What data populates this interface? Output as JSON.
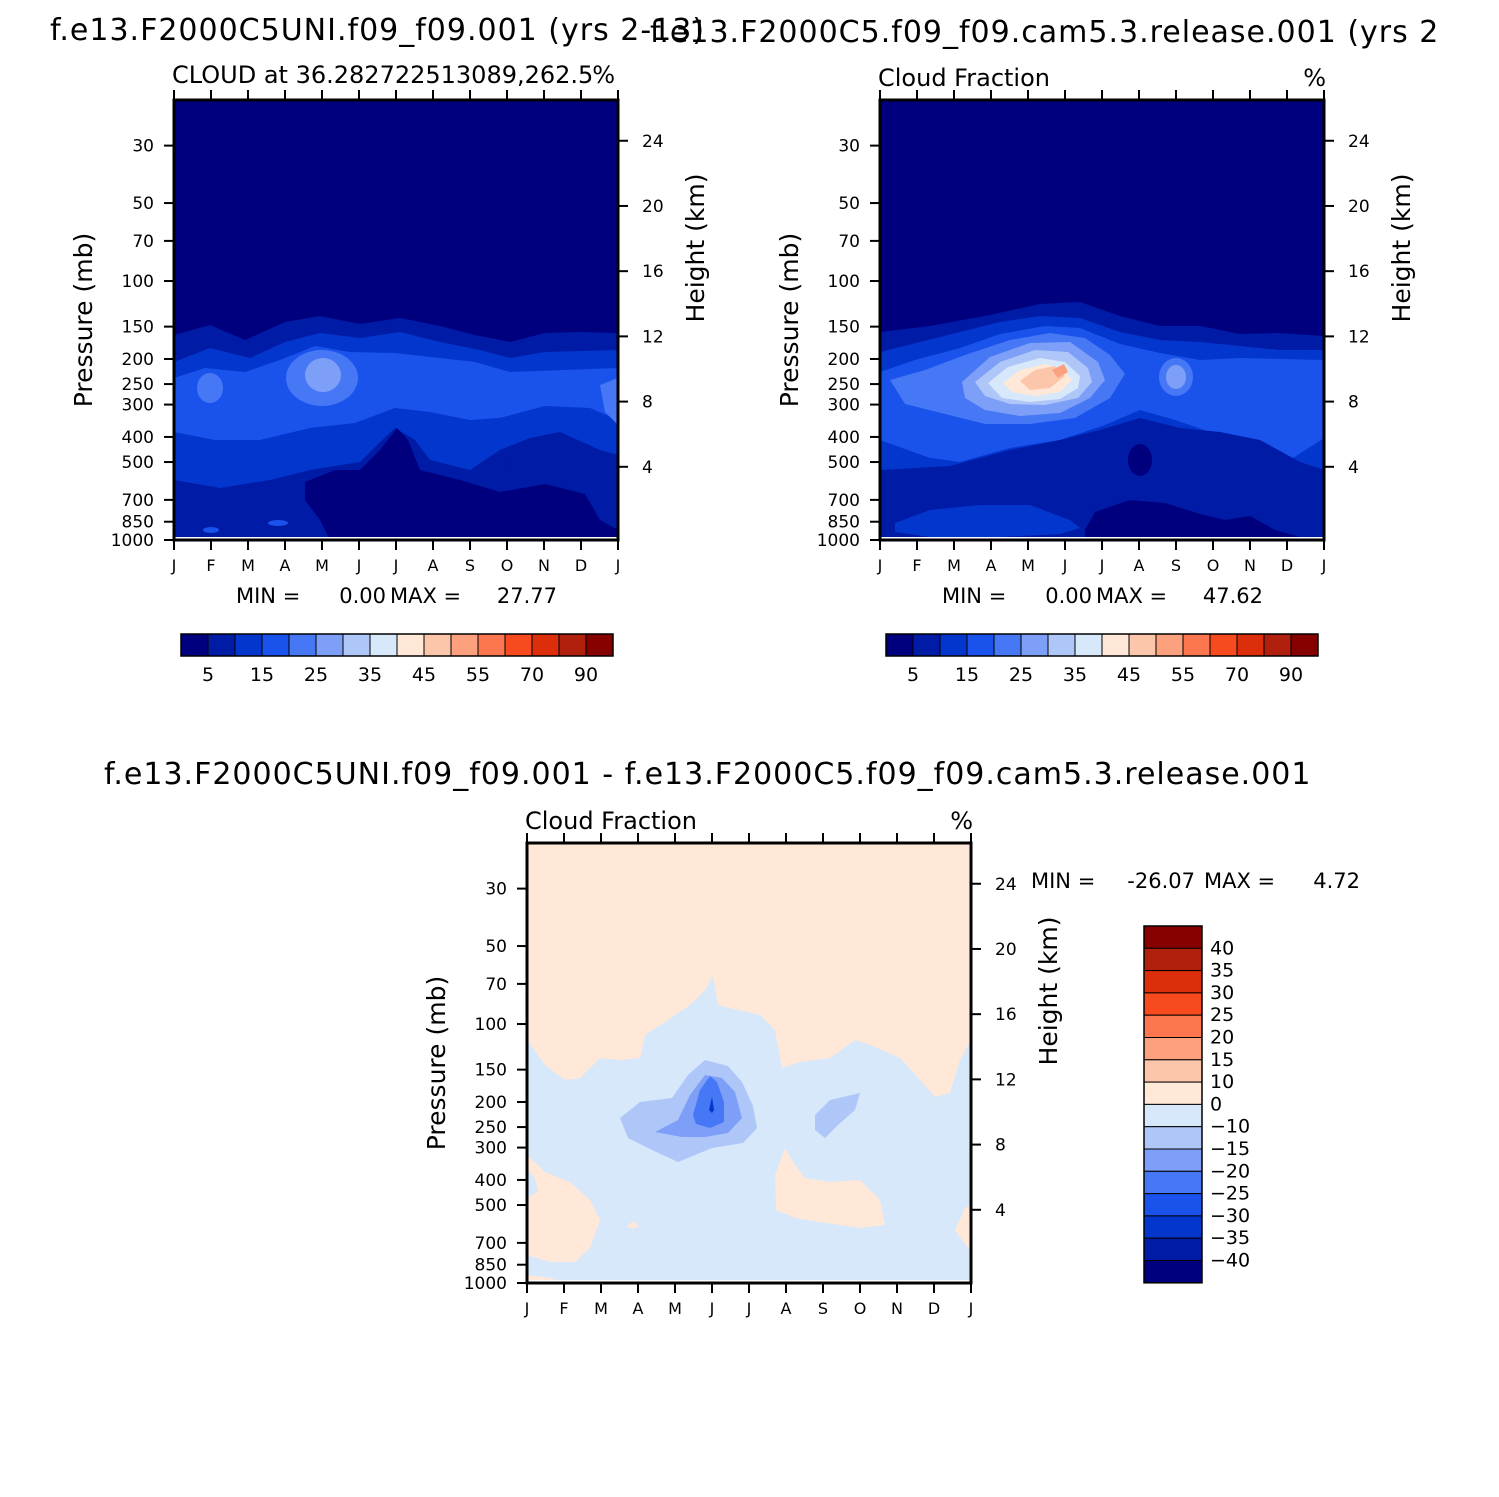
{
  "chart_data": [
    {
      "type": "heatmap",
      "case_title": "f.e13.F2000C5UNI.f09_f09.001  (yrs 2-13)",
      "subtitle": "CLOUD at 36.282722513089,262.5",
      "units": "%",
      "ylabel": "Pressure (mb)",
      "y2label": "Height (km)",
      "xticks": [
        "J",
        "F",
        "M",
        "A",
        "M",
        "J",
        "J",
        "A",
        "S",
        "O",
        "N",
        "D",
        "J"
      ],
      "pressure_ticks": [
        30,
        50,
        70,
        100,
        150,
        200,
        250,
        300,
        400,
        500,
        700,
        850,
        1000
      ],
      "height_ticks": [
        4,
        8,
        12,
        16,
        20,
        24
      ],
      "min_label": "MIN =",
      "min_value": "0.00",
      "max_label": "MAX =",
      "max_value": "27.77",
      "colorbar_ticks": [
        "5",
        "15",
        "25",
        "35",
        "45",
        "55",
        "70",
        "90"
      ],
      "min": 0.0,
      "max": 27.77
    },
    {
      "type": "heatmap",
      "case_title": "f.e13.F2000C5.f09_f09.cam5.3.release.001  (yrs 2",
      "subtitle": "Cloud Fraction",
      "units": "%",
      "ylabel": "Pressure (mb)",
      "y2label": "Height (km)",
      "xticks": [
        "J",
        "F",
        "M",
        "A",
        "M",
        "J",
        "J",
        "A",
        "S",
        "O",
        "N",
        "D",
        "J"
      ],
      "pressure_ticks": [
        30,
        50,
        70,
        100,
        150,
        200,
        250,
        300,
        400,
        500,
        700,
        850,
        1000
      ],
      "height_ticks": [
        4,
        8,
        12,
        16,
        20,
        24
      ],
      "min_label": "MIN =",
      "min_value": "0.00",
      "max_label": "MAX =",
      "max_value": "47.62",
      "colorbar_ticks": [
        "5",
        "15",
        "25",
        "35",
        "45",
        "55",
        "70",
        "90"
      ],
      "min": 0.0,
      "max": 47.62
    },
    {
      "type": "heatmap",
      "case_title": "f.e13.F2000C5UNI.f09_f09.001 - f.e13.F2000C5.f09_f09.cam5.3.release.001",
      "subtitle": "Cloud Fraction",
      "units": "%",
      "ylabel": "Pressure (mb)",
      "y2label": "Height (km)",
      "xticks": [
        "J",
        "F",
        "M",
        "A",
        "M",
        "J",
        "J",
        "A",
        "S",
        "O",
        "N",
        "D",
        "J"
      ],
      "pressure_ticks": [
        30,
        50,
        70,
        100,
        150,
        200,
        250,
        300,
        400,
        500,
        700,
        850,
        1000
      ],
      "height_ticks": [
        4,
        8,
        12,
        16,
        20,
        24
      ],
      "min_label": "MIN =",
      "min_value": "-26.07",
      "max_label": "MAX =",
      "max_value": "4.72",
      "colorbar_ticks": [
        "40",
        "35",
        "30",
        "25",
        "20",
        "15",
        "10",
        "0",
        "-10",
        "-15",
        "-20",
        "-25",
        "-30",
        "-35",
        "-40"
      ],
      "min": -26.07,
      "max": 4.72
    }
  ],
  "colors": {
    "abs_palette": [
      "#00007f",
      "#001ba6",
      "#0336cc",
      "#1a52ec",
      "#4677f5",
      "#7d9ff7",
      "#afc6f9",
      "#d7e8fb",
      "#ffe8d7",
      "#fcc6aa",
      "#fca07e",
      "#fc7750",
      "#f84a1f",
      "#dc2e0a",
      "#b1200d",
      "#870000"
    ],
    "diff_palette": [
      "#870000",
      "#b1200d",
      "#dc2e0a",
      "#f84a1f",
      "#fc7750",
      "#fca07e",
      "#fcc6aa",
      "#ffe8d7",
      "#d7e8fb",
      "#afc6f9",
      "#7d9ff7",
      "#4677f5",
      "#1a52ec",
      "#0336cc",
      "#001ba6",
      "#00007f"
    ]
  }
}
